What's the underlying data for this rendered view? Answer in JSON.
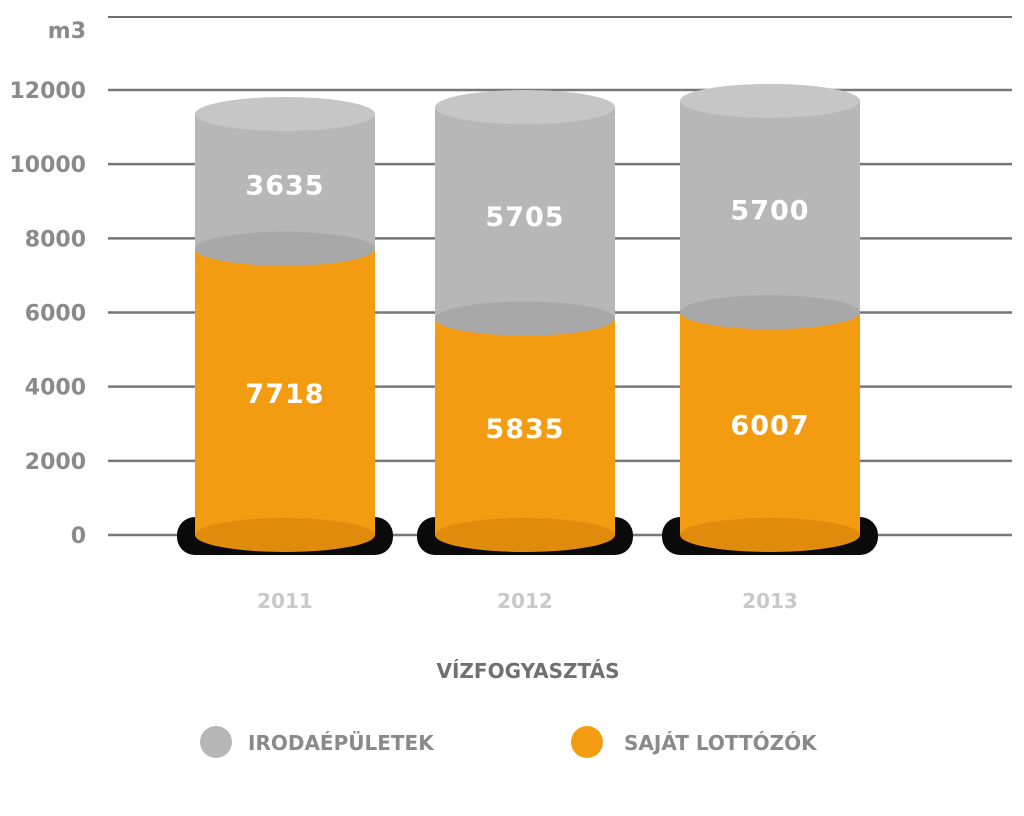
{
  "chart_data": {
    "type": "bar",
    "stacked": true,
    "style": "3d-cylinder",
    "title": "VÍZFOGYASZTÁS",
    "ylabel": "m3",
    "ylim": [
      0,
      12000
    ],
    "yticks": [
      "12000",
      "10000",
      "8000",
      "6000",
      "4000",
      "2000",
      "0"
    ],
    "categories": [
      "2011",
      "2012",
      "2013"
    ],
    "series": [
      {
        "name": "SAJÁT LOTTÓZÓK",
        "values": [
          7718,
          5835,
          6007
        ],
        "color": "#f39c12"
      },
      {
        "name": "IRODAÉPÜLETEK",
        "values": [
          3635,
          5705,
          5700
        ],
        "color": "#b7b7b7"
      }
    ],
    "legend": {
      "position": "bottom",
      "items": [
        {
          "label": "IRODAÉPÜLETEK",
          "color": "#b7b7b7"
        },
        {
          "label": "SAJÁT LOTTÓZÓK",
          "color": "#f39c12"
        }
      ]
    },
    "grid": true
  }
}
